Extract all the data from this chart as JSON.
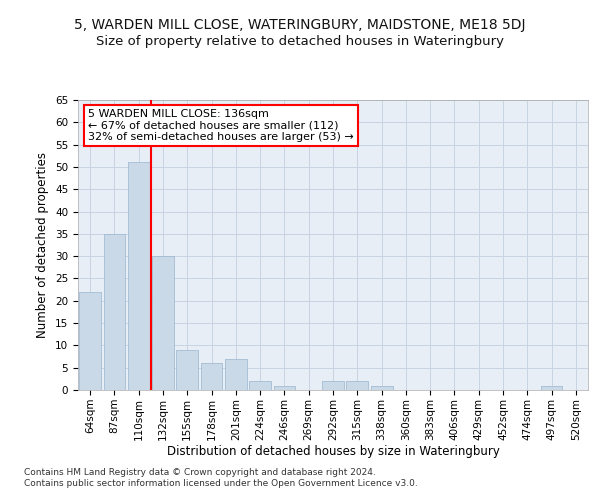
{
  "title": "5, WARDEN MILL CLOSE, WATERINGBURY, MAIDSTONE, ME18 5DJ",
  "subtitle": "Size of property relative to detached houses in Wateringbury",
  "xlabel": "Distribution of detached houses by size in Wateringbury",
  "ylabel": "Number of detached properties",
  "footnote": "Contains HM Land Registry data © Crown copyright and database right 2024.\nContains public sector information licensed under the Open Government Licence v3.0.",
  "bin_labels": [
    "64sqm",
    "87sqm",
    "110sqm",
    "132sqm",
    "155sqm",
    "178sqm",
    "201sqm",
    "224sqm",
    "246sqm",
    "269sqm",
    "292sqm",
    "315sqm",
    "338sqm",
    "360sqm",
    "383sqm",
    "406sqm",
    "429sqm",
    "452sqm",
    "474sqm",
    "497sqm",
    "520sqm"
  ],
  "bar_values": [
    22,
    35,
    51,
    30,
    9,
    6,
    7,
    2,
    1,
    0,
    2,
    2,
    1,
    0,
    0,
    0,
    0,
    0,
    0,
    1,
    0
  ],
  "bar_color": "#c9d9e8",
  "bar_edgecolor": "#9ab4cc",
  "vline_color": "red",
  "vline_x_index": 3,
  "annotation_text": "5 WARDEN MILL CLOSE: 136sqm\n← 67% of detached houses are smaller (112)\n32% of semi-detached houses are larger (53) →",
  "annotation_box_color": "white",
  "annotation_box_edgecolor": "red",
  "ylim": [
    0,
    65
  ],
  "yticks": [
    0,
    5,
    10,
    15,
    20,
    25,
    30,
    35,
    40,
    45,
    50,
    55,
    60,
    65
  ],
  "grid_color": "#c8d4e4",
  "bg_color": "#e8eef6",
  "title_fontsize": 10,
  "subtitle_fontsize": 9.5,
  "axis_label_fontsize": 8.5,
  "tick_fontsize": 7.5,
  "annotation_fontsize": 8,
  "footnote_fontsize": 6.5
}
